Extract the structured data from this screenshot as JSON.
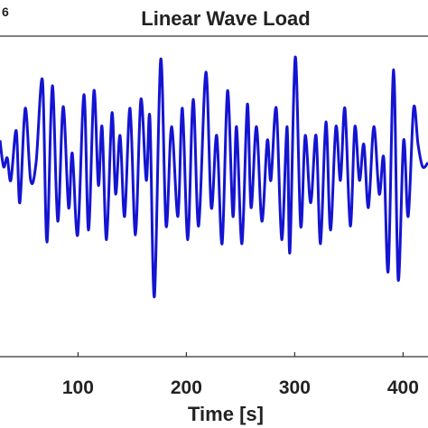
{
  "chart_data": {
    "type": "line",
    "title": "Linear Wave Load",
    "xlabel": "Time [s]",
    "annotation": "6",
    "x": [
      28.0,
      31.3,
      34.7,
      38.0,
      43.0,
      46.3,
      51.3,
      56.3,
      61.3,
      67.2,
      71.3,
      76.3,
      81.3,
      86.3,
      91.3,
      94.7,
      99.7,
      105.5,
      109.7,
      114.7,
      118.8,
      122.2,
      126.3,
      131.3,
      134.7,
      138.8,
      143.0,
      148.0,
      153.0,
      158.0,
      163.0,
      166.3,
      170.5,
      176.3,
      181.3,
      186.3,
      192.2,
      196.3,
      201.3,
      206.3,
      211.3,
      218.0,
      223.0,
      228.0,
      233.0,
      238.0,
      243.0,
      246.3,
      251.3,
      256.3,
      259.7,
      264.7,
      269.7,
      274.7,
      278.0,
      283.0,
      288.0,
      293.0,
      295.5,
      300.5,
      305.5,
      309.7,
      314.7,
      319.7,
      323.8,
      328.8,
      333.0,
      338.0,
      342.2,
      346.3,
      351.3,
      355.5,
      359.7,
      363.8,
      368.0,
      373.0,
      378.0,
      382.2,
      386.3,
      391.3,
      395.5,
      400.5,
      404.7,
      409.7,
      413.8,
      418.0,
      423.0
    ],
    "series": [
      {
        "color": "#1414d2",
        "values": [
          0.7,
          0.37,
          0.48,
          0.2,
          0.82,
          -0.08,
          1.1,
          0.2,
          0.42,
          1.45,
          -0.57,
          1.38,
          -0.31,
          1.12,
          -0.14,
          0.54,
          -0.48,
          1.27,
          -0.42,
          1.32,
          0.14,
          0.87,
          -0.54,
          1.04,
          0.03,
          0.76,
          -0.25,
          1.1,
          -0.48,
          1.21,
          0.2,
          0.99,
          -1.25,
          1.71,
          -0.37,
          0.87,
          -0.25,
          1.1,
          -0.54,
          1.21,
          -0.37,
          1.55,
          -0.14,
          0.76,
          -0.59,
          1.32,
          -0.25,
          0.87,
          -0.59,
          1.15,
          -0.14,
          0.87,
          -0.31,
          0.7,
          0.2,
          1.1,
          -0.54,
          0.87,
          -0.7,
          1.74,
          -0.37,
          0.76,
          -0.08,
          0.76,
          -0.59,
          0.93,
          -0.42,
          0.87,
          0.2,
          1.1,
          -0.37,
          0.87,
          0.2,
          0.65,
          -0.14,
          0.87,
          0.03,
          0.48,
          -0.93,
          1.58,
          -1.04,
          0.7,
          -0.25,
          1.1,
          0.65,
          0.37,
          0.42
        ]
      }
    ],
    "xlim": [
      28,
      423
    ],
    "ylim": [
      -2,
      2
    ],
    "xticks": [
      100,
      200,
      300,
      400
    ]
  }
}
